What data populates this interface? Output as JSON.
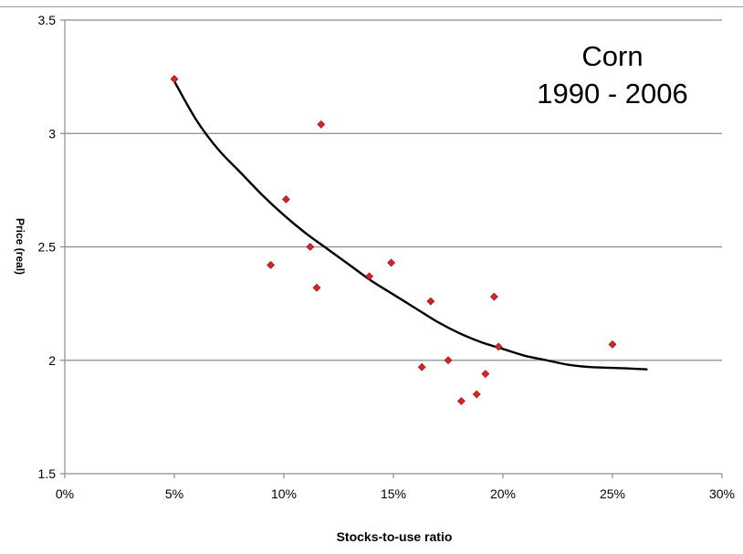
{
  "chart_data": {
    "type": "scatter",
    "annotation_lines": [
      "Corn",
      "1990 - 2006"
    ],
    "xlabel": "Stocks-to-use ratio",
    "ylabel": "Price (real)",
    "xlim": [
      0,
      0.3
    ],
    "ylim": [
      1.5,
      3.5
    ],
    "x_tick_values": [
      0,
      0.05,
      0.1,
      0.15,
      0.2,
      0.25,
      0.3
    ],
    "x_tick_labels": [
      "0%",
      "5%",
      "10%",
      "15%",
      "20%",
      "25%",
      "30%"
    ],
    "y_tick_values": [
      1.5,
      2,
      2.5,
      3,
      3.5
    ],
    "y_tick_labels": [
      "1.5",
      "2",
      "2.5",
      "3",
      "3.5"
    ],
    "grid": "horizontal",
    "series": [
      {
        "marker": "diamond",
        "color": "#d62424",
        "points": [
          [
            0.05,
            3.24
          ],
          [
            0.101,
            2.71
          ],
          [
            0.117,
            3.04
          ],
          [
            0.094,
            2.42
          ],
          [
            0.112,
            2.5
          ],
          [
            0.115,
            2.32
          ],
          [
            0.139,
            2.37
          ],
          [
            0.149,
            2.43
          ],
          [
            0.163,
            1.97
          ],
          [
            0.167,
            2.26
          ],
          [
            0.175,
            2.0
          ],
          [
            0.181,
            1.82
          ],
          [
            0.188,
            1.85
          ],
          [
            0.192,
            1.94
          ],
          [
            0.196,
            2.28
          ],
          [
            0.198,
            2.06
          ],
          [
            0.25,
            2.07
          ]
        ]
      }
    ],
    "trendline": {
      "type": "polynomial",
      "color": "#000000",
      "points": [
        [
          0.05,
          3.23
        ],
        [
          0.06,
          3.06
        ],
        [
          0.07,
          2.93
        ],
        [
          0.08,
          2.83
        ],
        [
          0.09,
          2.73
        ],
        [
          0.1,
          2.64
        ],
        [
          0.11,
          2.56
        ],
        [
          0.12,
          2.49
        ],
        [
          0.13,
          2.42
        ],
        [
          0.14,
          2.35
        ],
        [
          0.15,
          2.29
        ],
        [
          0.16,
          2.23
        ],
        [
          0.17,
          2.17
        ],
        [
          0.18,
          2.12
        ],
        [
          0.19,
          2.08
        ],
        [
          0.2,
          2.05
        ],
        [
          0.21,
          2.02
        ],
        [
          0.22,
          2.0
        ],
        [
          0.23,
          1.98
        ],
        [
          0.24,
          1.97
        ],
        [
          0.255,
          1.965
        ],
        [
          0.266,
          1.96
        ]
      ]
    }
  }
}
